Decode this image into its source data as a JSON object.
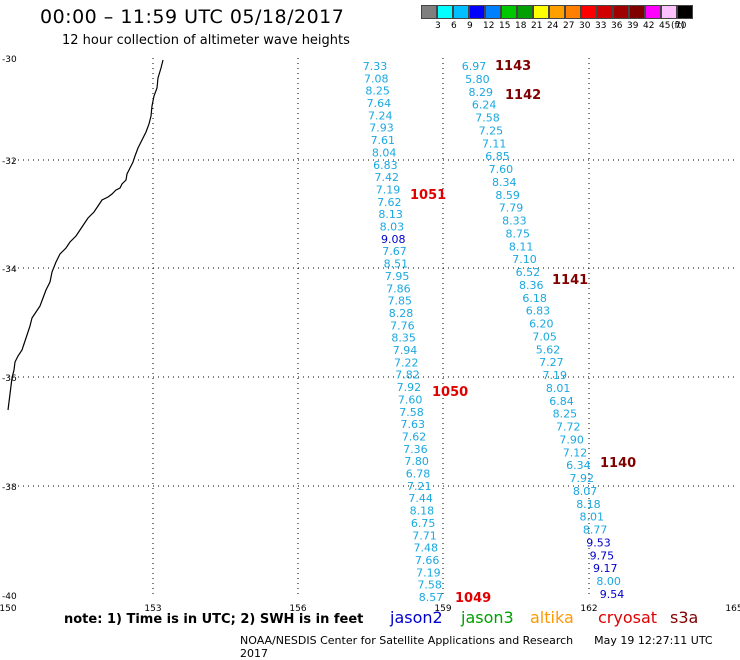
{
  "header": {
    "title": "00:00 – 11:59 UTC 05/18/2017",
    "subtitle": "12 hour collection of altimeter wave heights"
  },
  "legend": {
    "colors": [
      "#7f7f7f",
      "#00ffff",
      "#00bfff",
      "#0000ff",
      "#0080ff",
      "#00c800",
      "#00a000",
      "#ffff00",
      "#ffa000",
      "#ff7f00",
      "#ff0000",
      "#d00000",
      "#a00000",
      "#800000",
      "#ff00ff",
      "#ffc0ff",
      "#000000"
    ],
    "labels": [
      "3",
      "6",
      "9",
      "12",
      "15",
      "18",
      "21",
      "24",
      "27",
      "30",
      "33",
      "36",
      "39",
      "42",
      "45",
      "70",
      "(ft)"
    ]
  },
  "axes": {
    "lat_labels": [
      "-30",
      "-32",
      "-34",
      "-36",
      "-38",
      "-40"
    ],
    "lon_labels": [
      "150",
      "153",
      "156",
      "159",
      "162",
      "165"
    ]
  },
  "passes": [
    {
      "id": "1143",
      "x": "495",
      "y": "70",
      "color": "#800000"
    },
    {
      "id": "1142",
      "x": "505",
      "y": "99",
      "color": "#800000"
    },
    {
      "id": "1051",
      "x": "410",
      "y": "199",
      "color": "#e00000"
    },
    {
      "id": "1141",
      "x": "552",
      "y": "284",
      "color": "#800000"
    },
    {
      "id": "1050",
      "x": "432",
      "y": "396",
      "color": "#e00000"
    },
    {
      "id": "1140",
      "x": "600",
      "y": "467",
      "color": "#800000"
    },
    {
      "id": "1049",
      "x": "455",
      "y": "602",
      "color": "#e00000"
    }
  ],
  "track_a": [
    "7.33",
    "7.08",
    "8.25",
    "7.64",
    "7.24",
    "7.93",
    "7.61",
    "8.04",
    "6.83",
    "7.42",
    "7.19",
    "7.62",
    "8.13",
    "8.03",
    "9.08",
    "7.67",
    "8.51",
    "7.95",
    "7.86",
    "7.85",
    "8.28",
    "7.76",
    "8.35",
    "7.94",
    "7.22",
    "7.82",
    "7.92",
    "7.60",
    "7.58",
    "7.63",
    "7.62",
    "7.36",
    "7.80",
    "6.78",
    "7.21",
    "7.44",
    "8.18",
    "6.75",
    "7.71",
    "7.48",
    "7.66",
    "7.19",
    "7.58",
    "8.57"
  ],
  "track_b": [
    "6.97",
    "5.80",
    "8.29",
    "6.24",
    "7.58",
    "7.25",
    "7.11",
    "6.85",
    "7.60",
    "8.34",
    "8.59",
    "7.79",
    "8.33",
    "8.75",
    "8.11",
    "7.10",
    "6.52",
    "8.36",
    "6.18",
    "6.83",
    "6.20",
    "7.05",
    "5.62",
    "7.27",
    "7.19",
    "8.01",
    "6.84",
    "8.25",
    "7.72",
    "7.90",
    "7.12",
    "6.34",
    "7.92",
    "8.07",
    "8.18",
    "8.01",
    "8.77",
    "9.53",
    "9.75",
    "9.17",
    "8.00",
    "9.54"
  ],
  "footer": {
    "note": "note: 1) Time is in UTC; 2) SWH is in feet",
    "satellites": [
      {
        "name": "jason2",
        "color": "#0000cc"
      },
      {
        "name": "jason3",
        "color": "#00a000"
      },
      {
        "name": "altika",
        "color": "#ff9900"
      },
      {
        "name": "cryosat",
        "color": "#e00000"
      },
      {
        "name": "s3a",
        "color": "#800000"
      }
    ],
    "credit": "NOAA/NESDIS Center for Satellite Applications and Research",
    "timestamp": "May 19 12:27:11 UTC 2017"
  }
}
